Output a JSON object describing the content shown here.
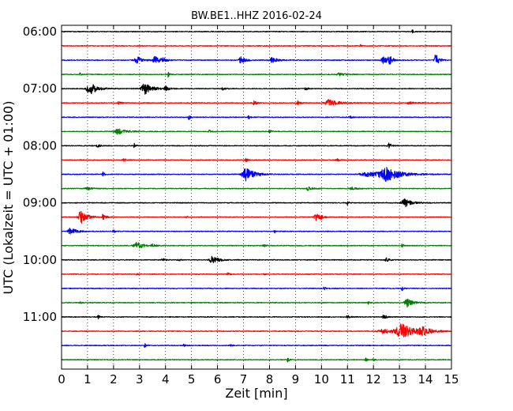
{
  "chart_data": {
    "type": "line",
    "title": "BW.BE1..HHZ 2016-02-24",
    "xlabel": "Zeit  [min]",
    "ylabel": "UTC (Lokalzeit = UTC + 01:00)",
    "xlim": [
      0,
      15
    ],
    "x_ticks": [
      "0",
      "1",
      "2",
      "3",
      "4",
      "5",
      "6",
      "7",
      "8",
      "9",
      "10",
      "11",
      "12",
      "13",
      "14",
      "15"
    ],
    "y_tick_labels": [
      "06:00",
      "07:00",
      "08:00",
      "09:00",
      "10:00",
      "11:00"
    ],
    "grid": "vertical dotted",
    "trace_minutes": 15,
    "trace_colors": [
      "#000000",
      "#ff0000",
      "#0000ff",
      "#008000"
    ],
    "traces": [
      {
        "start": "06:00",
        "color": "#000000",
        "events": [
          [
            13.5,
            0.3,
            0.05
          ]
        ]
      },
      {
        "start": "06:15",
        "color": "#ff0000",
        "events": [
          [
            11.5,
            0.15,
            0.05
          ]
        ]
      },
      {
        "start": "06:30",
        "color": "#0000ff",
        "events": [
          [
            2.9,
            0.5,
            0.2
          ],
          [
            3.6,
            0.5,
            0.2
          ],
          [
            3.9,
            0.4,
            0.1
          ],
          [
            6.9,
            0.5,
            0.15
          ],
          [
            8.1,
            0.4,
            0.2
          ],
          [
            12.4,
            0.5,
            0.2
          ],
          [
            12.6,
            1.0,
            0.08
          ],
          [
            14.4,
            1.0,
            0.1
          ]
        ]
      },
      {
        "start": "06:45",
        "color": "#008000",
        "events": [
          [
            0.7,
            0.25,
            0.05
          ],
          [
            4.1,
            0.4,
            0.05
          ],
          [
            10.7,
            0.2,
            0.2
          ]
        ]
      },
      {
        "start": "07:00",
        "color": "#000000",
        "events": [
          [
            1.1,
            0.9,
            0.25
          ],
          [
            3.2,
            0.8,
            0.25
          ],
          [
            4.0,
            0.4,
            0.1
          ],
          [
            6.2,
            0.2,
            0.1
          ],
          [
            9.4,
            0.2,
            0.1
          ]
        ]
      },
      {
        "start": "07:15",
        "color": "#ff0000",
        "events": [
          [
            2.2,
            0.2,
            0.1
          ],
          [
            7.4,
            0.3,
            0.1
          ],
          [
            9.1,
            0.3,
            0.1
          ],
          [
            10.3,
            0.5,
            0.35
          ],
          [
            13.4,
            0.2,
            0.2
          ]
        ]
      },
      {
        "start": "07:30",
        "color": "#0000ff",
        "events": [
          [
            4.9,
            0.4,
            0.05
          ],
          [
            7.2,
            0.3,
            0.05
          ],
          [
            11.1,
            0.2,
            0.1
          ]
        ]
      },
      {
        "start": "07:45",
        "color": "#008000",
        "events": [
          [
            2.2,
            0.4,
            0.3
          ],
          [
            5.7,
            0.2,
            0.1
          ],
          [
            8.0,
            0.2,
            0.1
          ]
        ]
      },
      {
        "start": "08:00",
        "color": "#000000",
        "events": [
          [
            1.4,
            0.3,
            0.1
          ],
          [
            2.8,
            0.3,
            0.05
          ],
          [
            12.6,
            0.4,
            0.1
          ]
        ]
      },
      {
        "start": "08:15",
        "color": "#ff0000",
        "events": [
          [
            2.4,
            0.2,
            0.1
          ],
          [
            7.1,
            0.2,
            0.1
          ],
          [
            10.6,
            0.2,
            0.1
          ]
        ]
      },
      {
        "start": "08:30",
        "color": "#0000ff",
        "events": [
          [
            1.6,
            0.4,
            0.05
          ],
          [
            7.1,
            0.9,
            0.3
          ],
          [
            12.5,
            0.9,
            0.5
          ],
          [
            11.8,
            0.3,
            0.6
          ]
        ]
      },
      {
        "start": "08:45",
        "color": "#008000",
        "events": [
          [
            1.0,
            0.2,
            0.2
          ],
          [
            9.5,
            0.3,
            0.15
          ],
          [
            11.2,
            0.2,
            0.2
          ]
        ]
      },
      {
        "start": "09:00",
        "color": "#000000",
        "events": [
          [
            11.0,
            0.3,
            0.05
          ],
          [
            13.2,
            0.6,
            0.25
          ]
        ]
      },
      {
        "start": "09:15",
        "color": "#ff0000",
        "events": [
          [
            0.75,
            1.0,
            0.2
          ],
          [
            1.6,
            0.4,
            0.1
          ],
          [
            4.8,
            0.2,
            0.05
          ],
          [
            9.8,
            0.5,
            0.15
          ],
          [
            10.0,
            0.3,
            0.05
          ]
        ]
      },
      {
        "start": "09:30",
        "color": "#0000ff",
        "events": [
          [
            0.35,
            0.5,
            0.2
          ],
          [
            2.0,
            0.25,
            0.05
          ],
          [
            8.2,
            0.2,
            0.05
          ]
        ]
      },
      {
        "start": "09:45",
        "color": "#008000",
        "events": [
          [
            2.9,
            0.5,
            0.25
          ],
          [
            3.5,
            0.2,
            0.1
          ],
          [
            7.8,
            0.2,
            0.1
          ],
          [
            13.1,
            0.3,
            0.05
          ]
        ]
      },
      {
        "start": "10:00",
        "color": "#000000",
        "events": [
          [
            4.5,
            0.3,
            0.05
          ],
          [
            5.8,
            0.6,
            0.2
          ],
          [
            3.9,
            0.2,
            0.1
          ],
          [
            12.5,
            0.3,
            0.1
          ]
        ]
      },
      {
        "start": "10:15",
        "color": "#ff0000",
        "events": [
          [
            2.9,
            0.2,
            0.05
          ],
          [
            6.4,
            0.3,
            0.05
          ],
          [
            7.8,
            0.2,
            0.05
          ]
        ]
      },
      {
        "start": "10:30",
        "color": "#0000ff",
        "events": [
          [
            10.1,
            0.3,
            0.05
          ],
          [
            13.1,
            0.4,
            0.05
          ]
        ]
      },
      {
        "start": "10:45",
        "color": "#008000",
        "events": [
          [
            0.7,
            0.2,
            0.05
          ],
          [
            11.8,
            0.2,
            0.05
          ],
          [
            13.3,
            0.6,
            0.2
          ]
        ]
      },
      {
        "start": "11:00",
        "color": "#000000",
        "events": [
          [
            1.4,
            0.3,
            0.05
          ],
          [
            12.4,
            0.3,
            0.1
          ],
          [
            11.0,
            0.2,
            0.1
          ]
        ]
      },
      {
        "start": "11:15",
        "color": "#ff0000",
        "events": [
          [
            13.1,
            1.0,
            0.45
          ],
          [
            13.9,
            0.5,
            0.3
          ],
          [
            12.4,
            0.3,
            0.4
          ]
        ]
      },
      {
        "start": "11:30",
        "color": "#0000ff",
        "events": [
          [
            3.2,
            0.3,
            0.05
          ],
          [
            4.7,
            0.2,
            0.05
          ],
          [
            6.5,
            0.2,
            0.05
          ]
        ]
      },
      {
        "start": "11:45",
        "color": "#008000",
        "events": [
          [
            8.7,
            0.3,
            0.05
          ],
          [
            11.7,
            0.3,
            0.05
          ],
          [
            12.0,
            0.2,
            0.05
          ]
        ]
      }
    ]
  }
}
